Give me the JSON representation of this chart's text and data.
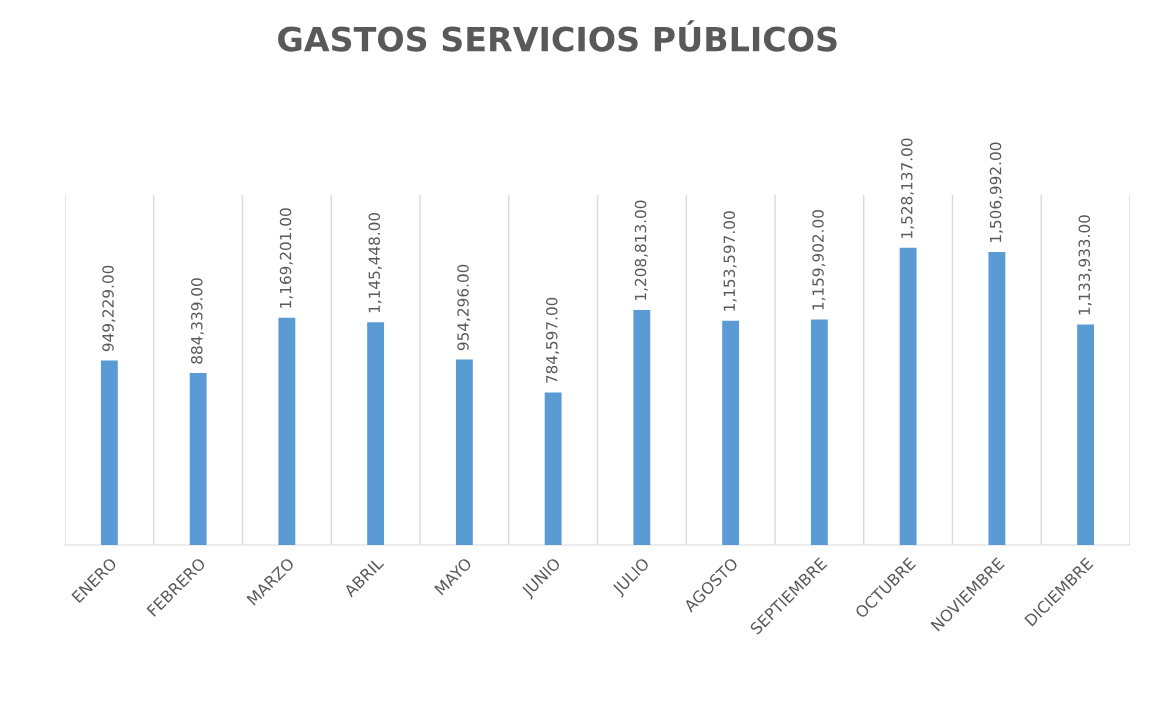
{
  "chart_data": {
    "type": "bar",
    "title": "GASTOS SERVICIOS PÚBLICOS",
    "categories": [
      "ENERO",
      "FEBRERO",
      "MARZO",
      "ABRIL",
      "MAYO",
      "JUNIO",
      "JULIO",
      "AGOSTO",
      "SEPTIEMBRE",
      "OCTUBRE",
      "NOVIEMBRE",
      "DICIEMBRE"
    ],
    "values": [
      949229,
      884339,
      1169201,
      1145448,
      954296,
      784597,
      1208813,
      1153597,
      1159902,
      1528137,
      1506992,
      1133933
    ],
    "value_labels": [
      "949,229.00",
      "884,339.00",
      "1,169,201.00",
      "1,145,448.00",
      "954,296.00",
      "784,597.00",
      "1,208,813.00",
      "1,153,597.00",
      "1,159,902.00",
      "1,528,137.00",
      "1,506,992.00",
      "1,133,933.00"
    ],
    "color": "#5b9bd5",
    "ylim": [
      0,
      1800000
    ],
    "tick_labels": "x",
    "grid": "x",
    "legend": false
  }
}
